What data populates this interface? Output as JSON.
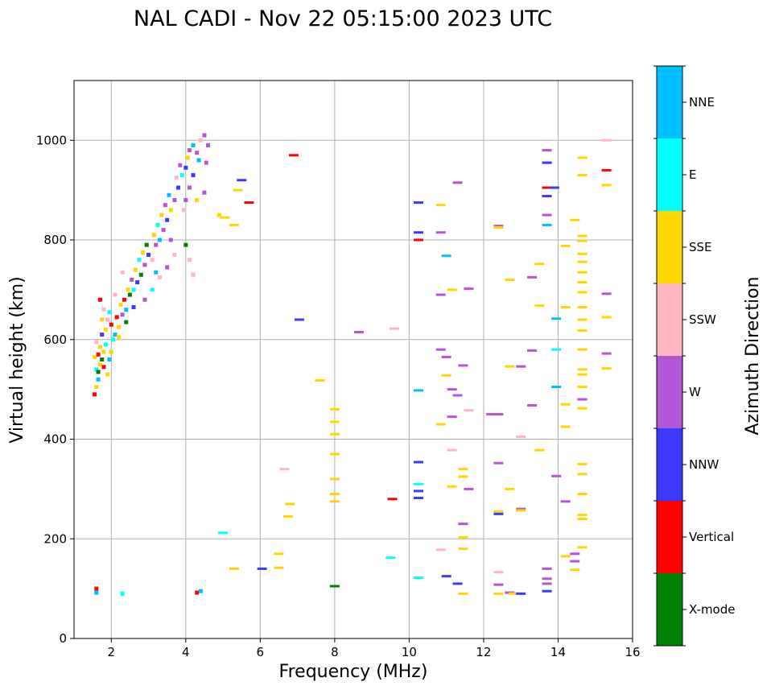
{
  "chart_data": {
    "type": "scatter",
    "title": "NAL CADI - Nov 22 05:15:00 2023 UTC",
    "xlabel": "Frequency (MHz)",
    "ylabel": "Virtual height (km)",
    "xlim": [
      1,
      16
    ],
    "ylim": [
      0,
      1120
    ],
    "xticks": [
      2,
      4,
      6,
      8,
      10,
      12,
      14,
      16
    ],
    "yticks": [
      0,
      200,
      400,
      600,
      800,
      1000
    ],
    "grid": true,
    "colorbar": {
      "title": "Azimuth Direction",
      "categories": [
        {
          "label": "X-mode",
          "color": "#008000"
        },
        {
          "label": "Vertical",
          "color": "#ff0000"
        },
        {
          "label": "NNW",
          "color": "#3a3aff"
        },
        {
          "label": "W",
          "color": "#b455d6"
        },
        {
          "label": "SSW",
          "color": "#ffb6c1"
        },
        {
          "label": "SSE",
          "color": "#ffd700"
        },
        {
          "label": "E",
          "color": "#00ffff"
        },
        {
          "label": "NNE",
          "color": "#00bfff"
        }
      ]
    },
    "points": [
      {
        "f": 1.55,
        "h": 490,
        "c": "Vertical"
      },
      {
        "f": 1.6,
        "h": 505,
        "c": "SSE"
      },
      {
        "f": 1.65,
        "h": 520,
        "c": "NNE"
      },
      {
        "f": 1.6,
        "h": 540,
        "c": "E"
      },
      {
        "f": 1.7,
        "h": 550,
        "c": "SSE"
      },
      {
        "f": 1.75,
        "h": 560,
        "c": "X-mode"
      },
      {
        "f": 1.65,
        "h": 570,
        "c": "Vertical"
      },
      {
        "f": 1.8,
        "h": 575,
        "c": "SSE"
      },
      {
        "f": 1.7,
        "h": 585,
        "c": "SSE"
      },
      {
        "f": 1.85,
        "h": 590,
        "c": "E"
      },
      {
        "f": 1.6,
        "h": 595,
        "c": "SSW"
      },
      {
        "f": 1.9,
        "h": 530,
        "c": "SSE"
      },
      {
        "f": 1.8,
        "h": 545,
        "c": "Vertical"
      },
      {
        "f": 1.95,
        "h": 560,
        "c": "NNE"
      },
      {
        "f": 2.0,
        "h": 575,
        "c": "SSE"
      },
      {
        "f": 1.75,
        "h": 610,
        "c": "NNW"
      },
      {
        "f": 1.85,
        "h": 620,
        "c": "SSE"
      },
      {
        "f": 2.05,
        "h": 600,
        "c": "E"
      },
      {
        "f": 1.55,
        "h": 565,
        "c": "SSE"
      },
      {
        "f": 1.65,
        "h": 535,
        "c": "X-mode"
      },
      {
        "f": 1.9,
        "h": 640,
        "c": "SSW"
      },
      {
        "f": 2.0,
        "h": 630,
        "c": "Vertical"
      },
      {
        "f": 2.1,
        "h": 610,
        "c": "NNE"
      },
      {
        "f": 1.95,
        "h": 655,
        "c": "E"
      },
      {
        "f": 2.2,
        "h": 625,
        "c": "SSE"
      },
      {
        "f": 2.15,
        "h": 645,
        "c": "Vertical"
      },
      {
        "f": 2.3,
        "h": 650,
        "c": "W"
      },
      {
        "f": 2.25,
        "h": 670,
        "c": "SSE"
      },
      {
        "f": 2.35,
        "h": 680,
        "c": "Vertical"
      },
      {
        "f": 2.1,
        "h": 690,
        "c": "SSW"
      },
      {
        "f": 2.4,
        "h": 660,
        "c": "NNE"
      },
      {
        "f": 2.5,
        "h": 690,
        "c": "X-mode"
      },
      {
        "f": 2.45,
        "h": 700,
        "c": "SSE"
      },
      {
        "f": 2.6,
        "h": 700,
        "c": "E"
      },
      {
        "f": 2.55,
        "h": 720,
        "c": "W"
      },
      {
        "f": 2.3,
        "h": 735,
        "c": "SSW"
      },
      {
        "f": 2.7,
        "h": 715,
        "c": "NNW"
      },
      {
        "f": 2.65,
        "h": 740,
        "c": "SSE"
      },
      {
        "f": 2.8,
        "h": 730,
        "c": "X-mode"
      },
      {
        "f": 2.75,
        "h": 760,
        "c": "E"
      },
      {
        "f": 2.9,
        "h": 750,
        "c": "W"
      },
      {
        "f": 2.85,
        "h": 775,
        "c": "SSE"
      },
      {
        "f": 3.0,
        "h": 770,
        "c": "NNW"
      },
      {
        "f": 2.95,
        "h": 790,
        "c": "X-mode"
      },
      {
        "f": 3.1,
        "h": 760,
        "c": "SSW"
      },
      {
        "f": 3.2,
        "h": 790,
        "c": "W"
      },
      {
        "f": 3.15,
        "h": 810,
        "c": "SSE"
      },
      {
        "f": 3.3,
        "h": 800,
        "c": "NNE"
      },
      {
        "f": 3.25,
        "h": 830,
        "c": "E"
      },
      {
        "f": 3.4,
        "h": 820,
        "c": "W"
      },
      {
        "f": 3.35,
        "h": 850,
        "c": "SSE"
      },
      {
        "f": 3.5,
        "h": 840,
        "c": "NNW"
      },
      {
        "f": 3.45,
        "h": 870,
        "c": "W"
      },
      {
        "f": 3.6,
        "h": 860,
        "c": "SSE"
      },
      {
        "f": 3.55,
        "h": 890,
        "c": "NNE"
      },
      {
        "f": 3.7,
        "h": 880,
        "c": "W"
      },
      {
        "f": 3.8,
        "h": 905,
        "c": "NNW"
      },
      {
        "f": 3.75,
        "h": 925,
        "c": "SSW"
      },
      {
        "f": 3.9,
        "h": 930,
        "c": "E"
      },
      {
        "f": 3.85,
        "h": 950,
        "c": "W"
      },
      {
        "f": 4.0,
        "h": 945,
        "c": "NNW"
      },
      {
        "f": 4.05,
        "h": 965,
        "c": "SSE"
      },
      {
        "f": 4.1,
        "h": 980,
        "c": "W"
      },
      {
        "f": 4.2,
        "h": 990,
        "c": "NNE"
      },
      {
        "f": 4.3,
        "h": 975,
        "c": "W"
      },
      {
        "f": 4.4,
        "h": 1000,
        "c": "SSW"
      },
      {
        "f": 4.5,
        "h": 1010,
        "c": "W"
      },
      {
        "f": 4.6,
        "h": 990,
        "c": "W"
      },
      {
        "f": 4.35,
        "h": 960,
        "c": "NNE"
      },
      {
        "f": 4.55,
        "h": 955,
        "c": "W"
      },
      {
        "f": 4.2,
        "h": 930,
        "c": "NNW"
      },
      {
        "f": 4.1,
        "h": 905,
        "c": "W"
      },
      {
        "f": 4.0,
        "h": 880,
        "c": "W"
      },
      {
        "f": 3.95,
        "h": 860,
        "c": "SSW"
      },
      {
        "f": 4.3,
        "h": 880,
        "c": "SSE"
      },
      {
        "f": 4.5,
        "h": 895,
        "c": "W"
      },
      {
        "f": 3.6,
        "h": 800,
        "c": "W"
      },
      {
        "f": 3.7,
        "h": 770,
        "c": "SSW"
      },
      {
        "f": 3.5,
        "h": 745,
        "c": "W"
      },
      {
        "f": 3.3,
        "h": 725,
        "c": "SSW"
      },
      {
        "f": 3.1,
        "h": 700,
        "c": "E"
      },
      {
        "f": 2.9,
        "h": 680,
        "c": "W"
      },
      {
        "f": 4.0,
        "h": 790,
        "c": "X-mode"
      },
      {
        "f": 4.1,
        "h": 760,
        "c": "SSW"
      },
      {
        "f": 4.2,
        "h": 730,
        "c": "SSW"
      },
      {
        "f": 3.2,
        "h": 735,
        "c": "NNE"
      },
      {
        "f": 2.6,
        "h": 665,
        "c": "NNW"
      },
      {
        "f": 2.4,
        "h": 635,
        "c": "X-mode"
      },
      {
        "f": 2.2,
        "h": 605,
        "c": "SSE"
      },
      {
        "f": 1.8,
        "h": 660,
        "c": "SSW"
      },
      {
        "f": 1.75,
        "h": 640,
        "c": "SSE"
      },
      {
        "f": 1.7,
        "h": 680,
        "c": "Vertical"
      },
      {
        "f": 1.6,
        "h": 100,
        "c": "Vertical"
      },
      {
        "f": 1.6,
        "h": 92,
        "c": "NNE"
      },
      {
        "f": 2.3,
        "h": 90,
        "c": "E"
      },
      {
        "f": 4.3,
        "h": 92,
        "c": "Vertical"
      },
      {
        "f": 4.4,
        "h": 95,
        "c": "NNE"
      },
      {
        "f": 4.9,
        "h": 850,
        "c": "SSE"
      },
      {
        "f": 5.05,
        "h": 845,
        "c": "SSE"
      },
      {
        "f": 5.3,
        "h": 830,
        "c": "SSE"
      },
      {
        "f": 5.7,
        "h": 875,
        "c": "Vertical"
      },
      {
        "f": 5.5,
        "h": 920,
        "c": "NNW"
      },
      {
        "f": 5.4,
        "h": 900,
        "c": "SSE"
      },
      {
        "f": 5.0,
        "h": 212,
        "c": "E"
      },
      {
        "f": 5.3,
        "h": 140,
        "c": "SSE"
      },
      {
        "f": 6.05,
        "h": 140,
        "c": "NNW"
      },
      {
        "f": 6.5,
        "h": 170,
        "c": "SSE"
      },
      {
        "f": 6.5,
        "h": 142,
        "c": "SSE"
      },
      {
        "f": 6.65,
        "h": 340,
        "c": "SSW"
      },
      {
        "f": 6.8,
        "h": 270,
        "c": "SSE"
      },
      {
        "f": 6.75,
        "h": 245,
        "c": "SSE"
      },
      {
        "f": 6.9,
        "h": 970,
        "c": "Vertical"
      },
      {
        "f": 7.05,
        "h": 640,
        "c": "NNW"
      },
      {
        "f": 7.6,
        "h": 518,
        "c": "SSE"
      },
      {
        "f": 8.0,
        "h": 460,
        "c": "SSE"
      },
      {
        "f": 8.0,
        "h": 435,
        "c": "SSE"
      },
      {
        "f": 8.0,
        "h": 410,
        "c": "SSE"
      },
      {
        "f": 8.0,
        "h": 370,
        "c": "SSE"
      },
      {
        "f": 8.0,
        "h": 320,
        "c": "SSE"
      },
      {
        "f": 8.0,
        "h": 290,
        "c": "SSE"
      },
      {
        "f": 8.0,
        "h": 275,
        "c": "SSE"
      },
      {
        "f": 8.0,
        "h": 105,
        "c": "X-mode"
      },
      {
        "f": 8.65,
        "h": 615,
        "c": "W"
      },
      {
        "f": 9.6,
        "h": 622,
        "c": "SSW"
      },
      {
        "f": 9.55,
        "h": 280,
        "c": "Vertical"
      },
      {
        "f": 9.5,
        "h": 162,
        "c": "E"
      },
      {
        "f": 10.25,
        "h": 875,
        "c": "NNW"
      },
      {
        "f": 10.25,
        "h": 815,
        "c": "NNW"
      },
      {
        "f": 10.25,
        "h": 800,
        "c": "Vertical"
      },
      {
        "f": 10.25,
        "h": 498,
        "c": "NNE"
      },
      {
        "f": 10.25,
        "h": 354,
        "c": "NNW"
      },
      {
        "f": 10.25,
        "h": 310,
        "c": "E"
      },
      {
        "f": 10.25,
        "h": 296,
        "c": "NNW"
      },
      {
        "f": 10.25,
        "h": 282,
        "c": "NNW"
      },
      {
        "f": 10.25,
        "h": 122,
        "c": "E"
      },
      {
        "f": 10.85,
        "h": 870,
        "c": "SSE"
      },
      {
        "f": 10.85,
        "h": 815,
        "c": "W"
      },
      {
        "f": 10.85,
        "h": 690,
        "c": "W"
      },
      {
        "f": 10.85,
        "h": 580,
        "c": "W"
      },
      {
        "f": 10.85,
        "h": 430,
        "c": "SSE"
      },
      {
        "f": 10.85,
        "h": 178,
        "c": "SSW"
      },
      {
        "f": 11.0,
        "h": 768,
        "c": "NNE"
      },
      {
        "f": 11.0,
        "h": 565,
        "c": "W"
      },
      {
        "f": 11.0,
        "h": 528,
        "c": "SSE"
      },
      {
        "f": 11.0,
        "h": 125,
        "c": "NNW"
      },
      {
        "f": 11.15,
        "h": 700,
        "c": "SSE"
      },
      {
        "f": 11.15,
        "h": 500,
        "c": "W"
      },
      {
        "f": 11.15,
        "h": 445,
        "c": "W"
      },
      {
        "f": 11.15,
        "h": 378,
        "c": "SSW"
      },
      {
        "f": 11.15,
        "h": 305,
        "c": "SSE"
      },
      {
        "f": 11.3,
        "h": 915,
        "c": "W"
      },
      {
        "f": 11.3,
        "h": 488,
        "c": "W"
      },
      {
        "f": 11.3,
        "h": 110,
        "c": "NNW"
      },
      {
        "f": 11.45,
        "h": 548,
        "c": "W"
      },
      {
        "f": 11.45,
        "h": 340,
        "c": "SSE"
      },
      {
        "f": 11.45,
        "h": 325,
        "c": "SSE"
      },
      {
        "f": 11.45,
        "h": 230,
        "c": "W"
      },
      {
        "f": 11.45,
        "h": 203,
        "c": "SSE"
      },
      {
        "f": 11.45,
        "h": 180,
        "c": "SSE"
      },
      {
        "f": 11.45,
        "h": 90,
        "c": "SSE"
      },
      {
        "f": 11.6,
        "h": 702,
        "c": "W"
      },
      {
        "f": 11.6,
        "h": 458,
        "c": "SSW"
      },
      {
        "f": 11.6,
        "h": 300,
        "c": "W"
      },
      {
        "f": 12.2,
        "h": 450,
        "c": "W"
      },
      {
        "f": 12.4,
        "h": 828,
        "c": "W"
      },
      {
        "f": 12.4,
        "h": 825,
        "c": "SSE"
      },
      {
        "f": 12.4,
        "h": 450,
        "c": "W"
      },
      {
        "f": 12.4,
        "h": 352,
        "c": "W"
      },
      {
        "f": 12.4,
        "h": 255,
        "c": "SSE"
      },
      {
        "f": 12.4,
        "h": 250,
        "c": "NNW"
      },
      {
        "f": 12.4,
        "h": 133,
        "c": "SSW"
      },
      {
        "f": 12.4,
        "h": 108,
        "c": "W"
      },
      {
        "f": 12.4,
        "h": 90,
        "c": "SSE"
      },
      {
        "f": 12.7,
        "h": 720,
        "c": "SSE"
      },
      {
        "f": 12.7,
        "h": 546,
        "c": "SSE"
      },
      {
        "f": 12.7,
        "h": 300,
        "c": "SSE"
      },
      {
        "f": 12.7,
        "h": 92,
        "c": "W"
      },
      {
        "f": 12.8,
        "h": 90,
        "c": "SSE"
      },
      {
        "f": 13.0,
        "h": 546,
        "c": "W"
      },
      {
        "f": 13.0,
        "h": 405,
        "c": "SSW"
      },
      {
        "f": 13.0,
        "h": 260,
        "c": "W"
      },
      {
        "f": 13.0,
        "h": 257,
        "c": "SSE"
      },
      {
        "f": 13.0,
        "h": 90,
        "c": "NNW"
      },
      {
        "f": 13.3,
        "h": 725,
        "c": "W"
      },
      {
        "f": 13.3,
        "h": 578,
        "c": "W"
      },
      {
        "f": 13.3,
        "h": 468,
        "c": "W"
      },
      {
        "f": 13.5,
        "h": 752,
        "c": "SSE"
      },
      {
        "f": 13.5,
        "h": 668,
        "c": "SSE"
      },
      {
        "f": 13.5,
        "h": 378,
        "c": "SSE"
      },
      {
        "f": 13.7,
        "h": 980,
        "c": "W"
      },
      {
        "f": 13.7,
        "h": 955,
        "c": "NNW"
      },
      {
        "f": 13.7,
        "h": 905,
        "c": "Vertical"
      },
      {
        "f": 13.7,
        "h": 888,
        "c": "NNW"
      },
      {
        "f": 13.7,
        "h": 850,
        "c": "W"
      },
      {
        "f": 13.7,
        "h": 830,
        "c": "NNE"
      },
      {
        "f": 13.7,
        "h": 140,
        "c": "W"
      },
      {
        "f": 13.7,
        "h": 120,
        "c": "W"
      },
      {
        "f": 13.7,
        "h": 110,
        "c": "W"
      },
      {
        "f": 13.7,
        "h": 95,
        "c": "NNW"
      },
      {
        "f": 13.9,
        "h": 905,
        "c": "NNW"
      },
      {
        "f": 13.95,
        "h": 642,
        "c": "NNE"
      },
      {
        "f": 13.95,
        "h": 580,
        "c": "E"
      },
      {
        "f": 13.95,
        "h": 505,
        "c": "NNE"
      },
      {
        "f": 13.95,
        "h": 326,
        "c": "W"
      },
      {
        "f": 14.2,
        "h": 788,
        "c": "SSE"
      },
      {
        "f": 14.2,
        "h": 665,
        "c": "SSE"
      },
      {
        "f": 14.2,
        "h": 470,
        "c": "SSE"
      },
      {
        "f": 14.2,
        "h": 425,
        "c": "SSE"
      },
      {
        "f": 14.2,
        "h": 275,
        "c": "W"
      },
      {
        "f": 14.2,
        "h": 165,
        "c": "SSE"
      },
      {
        "f": 14.45,
        "h": 840,
        "c": "SSE"
      },
      {
        "f": 14.45,
        "h": 170,
        "c": "W"
      },
      {
        "f": 14.45,
        "h": 155,
        "c": "W"
      },
      {
        "f": 14.45,
        "h": 138,
        "c": "SSE"
      },
      {
        "f": 14.65,
        "h": 965,
        "c": "SSE"
      },
      {
        "f": 14.65,
        "h": 930,
        "c": "SSE"
      },
      {
        "f": 14.65,
        "h": 808,
        "c": "SSE"
      },
      {
        "f": 14.65,
        "h": 798,
        "c": "SSE"
      },
      {
        "f": 14.65,
        "h": 772,
        "c": "SSE"
      },
      {
        "f": 14.65,
        "h": 756,
        "c": "SSE"
      },
      {
        "f": 14.65,
        "h": 735,
        "c": "SSE"
      },
      {
        "f": 14.65,
        "h": 715,
        "c": "SSE"
      },
      {
        "f": 14.65,
        "h": 695,
        "c": "SSE"
      },
      {
        "f": 14.65,
        "h": 665,
        "c": "SSE"
      },
      {
        "f": 14.65,
        "h": 640,
        "c": "SSE"
      },
      {
        "f": 14.65,
        "h": 618,
        "c": "SSE"
      },
      {
        "f": 14.65,
        "h": 580,
        "c": "SSE"
      },
      {
        "f": 14.65,
        "h": 540,
        "c": "SSE"
      },
      {
        "f": 14.65,
        "h": 530,
        "c": "SSE"
      },
      {
        "f": 14.65,
        "h": 505,
        "c": "SSE"
      },
      {
        "f": 14.65,
        "h": 480,
        "c": "W"
      },
      {
        "f": 14.65,
        "h": 462,
        "c": "SSE"
      },
      {
        "f": 14.65,
        "h": 350,
        "c": "SSE"
      },
      {
        "f": 14.65,
        "h": 330,
        "c": "SSE"
      },
      {
        "f": 14.65,
        "h": 290,
        "c": "SSE"
      },
      {
        "f": 14.65,
        "h": 248,
        "c": "SSE"
      },
      {
        "f": 14.65,
        "h": 240,
        "c": "SSE"
      },
      {
        "f": 14.65,
        "h": 183,
        "c": "SSE"
      },
      {
        "f": 15.3,
        "h": 1000,
        "c": "SSW"
      },
      {
        "f": 15.3,
        "h": 940,
        "c": "Vertical"
      },
      {
        "f": 15.3,
        "h": 910,
        "c": "SSE"
      },
      {
        "f": 15.3,
        "h": 692,
        "c": "W"
      },
      {
        "f": 15.3,
        "h": 645,
        "c": "SSE"
      },
      {
        "f": 15.3,
        "h": 572,
        "c": "W"
      },
      {
        "f": 15.3,
        "h": 542,
        "c": "SSE"
      }
    ]
  }
}
